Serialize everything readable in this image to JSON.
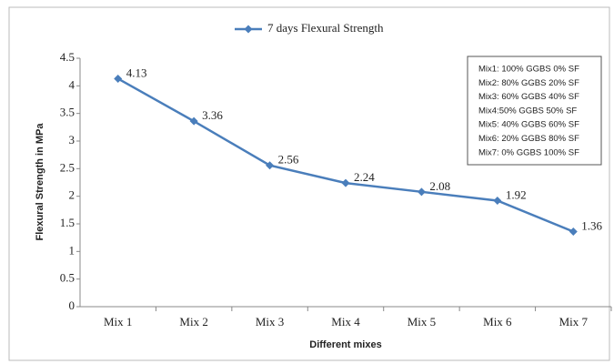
{
  "chart_data": {
    "type": "line",
    "x_label": "Different mixes",
    "y_label": "Flexural  Strength in MPa",
    "categories": [
      "Mix 1",
      "Mix 2",
      "Mix 3",
      "Mix 4",
      "Mix 5",
      "Mix 6",
      "Mix 7"
    ],
    "series": [
      {
        "name": "7 days Flexural Strength",
        "color": "#4a7ebb",
        "values": [
          4.13,
          3.36,
          2.56,
          2.24,
          2.08,
          1.92,
          1.36
        ]
      }
    ],
    "ylim": [
      0,
      4.5
    ],
    "yticks": [
      0,
      0.5,
      1,
      1.5,
      2,
      2.5,
      3,
      3.5,
      4,
      4.5
    ],
    "grid": false,
    "data_labels": true,
    "legend": "top",
    "annotations": [
      "Mix1: 100% GGBS 0% SF",
      "Mix2: 80% GGBS 20% SF",
      "Mix3: 60% GGBS 40% SF",
      "Mix4:50% GGBS 50% SF",
      "Mix5: 40% GGBS 60% SF",
      "Mix6: 20% GGBS 80% SF",
      "Mix7: 0% GGBS 100% SF"
    ]
  }
}
